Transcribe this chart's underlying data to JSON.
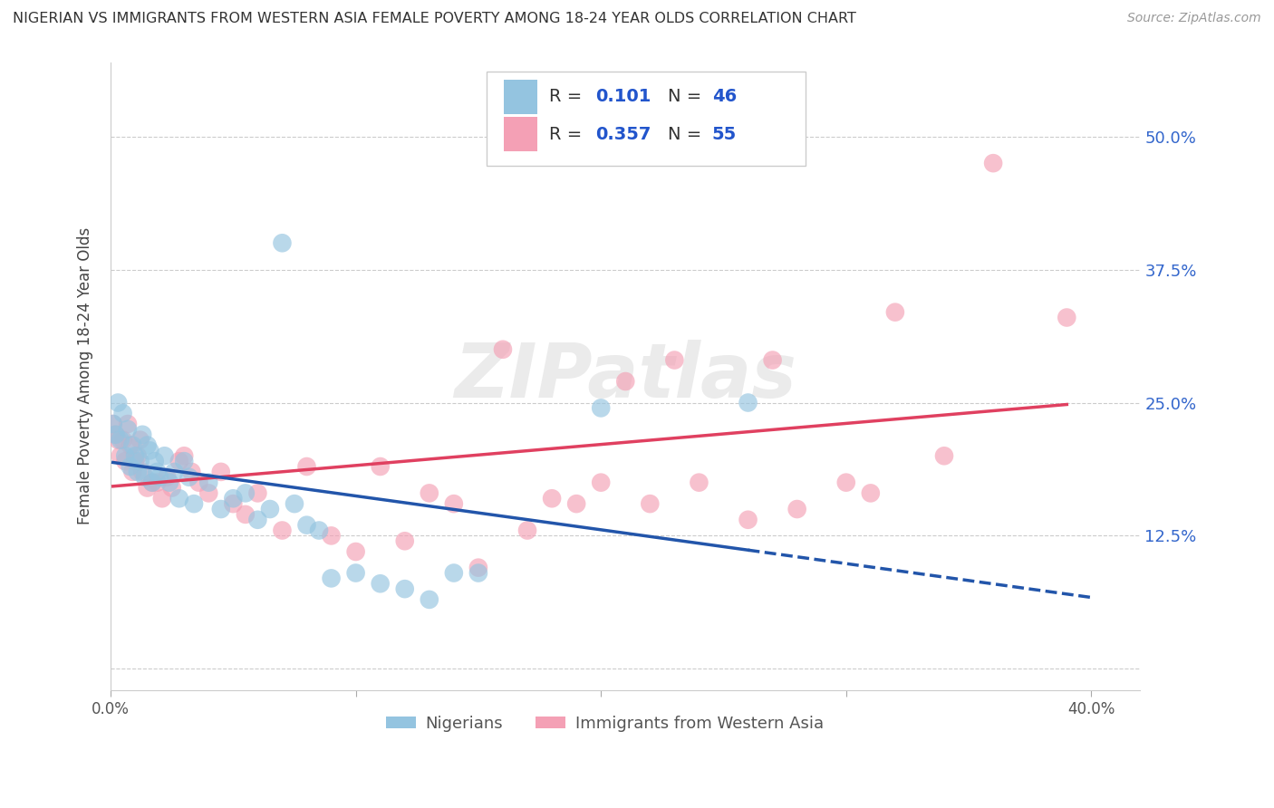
{
  "title": "NIGERIAN VS IMMIGRANTS FROM WESTERN ASIA FEMALE POVERTY AMONG 18-24 YEAR OLDS CORRELATION CHART",
  "source": "Source: ZipAtlas.com",
  "ylabel": "Female Poverty Among 18-24 Year Olds",
  "xlim": [
    0.0,
    0.42
  ],
  "ylim": [
    -0.02,
    0.57
  ],
  "ytick_positions": [
    0.0,
    0.125,
    0.25,
    0.375,
    0.5
  ],
  "yticklabels_right": [
    "",
    "12.5%",
    "25.0%",
    "37.5%",
    "50.0%"
  ],
  "blue_color": "#94c4e0",
  "pink_color": "#f4a0b5",
  "blue_line_color": "#2255aa",
  "pink_line_color": "#e04060",
  "watermark": "ZIPatlas",
  "nigerian_x": [
    0.001,
    0.002,
    0.003,
    0.004,
    0.005,
    0.006,
    0.007,
    0.008,
    0.009,
    0.01,
    0.011,
    0.012,
    0.013,
    0.014,
    0.015,
    0.016,
    0.017,
    0.018,
    0.019,
    0.02,
    0.022,
    0.024,
    0.026,
    0.028,
    0.03,
    0.032,
    0.034,
    0.04,
    0.045,
    0.05,
    0.055,
    0.06,
    0.065,
    0.07,
    0.075,
    0.08,
    0.085,
    0.09,
    0.1,
    0.11,
    0.12,
    0.13,
    0.14,
    0.15,
    0.2,
    0.26
  ],
  "nigerian_y": [
    0.23,
    0.22,
    0.25,
    0.215,
    0.24,
    0.2,
    0.225,
    0.19,
    0.21,
    0.2,
    0.185,
    0.195,
    0.22,
    0.18,
    0.21,
    0.205,
    0.175,
    0.195,
    0.185,
    0.18,
    0.2,
    0.175,
    0.185,
    0.16,
    0.195,
    0.18,
    0.155,
    0.175,
    0.15,
    0.16,
    0.165,
    0.14,
    0.15,
    0.4,
    0.155,
    0.135,
    0.13,
    0.085,
    0.09,
    0.08,
    0.075,
    0.065,
    0.09,
    0.09,
    0.245,
    0.25
  ],
  "immigrant_x": [
    0.001,
    0.002,
    0.003,
    0.004,
    0.005,
    0.006,
    0.007,
    0.008,
    0.009,
    0.01,
    0.011,
    0.012,
    0.013,
    0.015,
    0.017,
    0.019,
    0.021,
    0.023,
    0.025,
    0.028,
    0.03,
    0.033,
    0.036,
    0.04,
    0.045,
    0.05,
    0.055,
    0.06,
    0.07,
    0.08,
    0.09,
    0.1,
    0.11,
    0.12,
    0.13,
    0.14,
    0.15,
    0.16,
    0.17,
    0.18,
    0.19,
    0.2,
    0.21,
    0.22,
    0.23,
    0.24,
    0.26,
    0.27,
    0.28,
    0.3,
    0.31,
    0.32,
    0.34,
    0.36,
    0.39
  ],
  "immigrant_y": [
    0.23,
    0.22,
    0.215,
    0.2,
    0.215,
    0.195,
    0.23,
    0.21,
    0.185,
    0.195,
    0.2,
    0.215,
    0.185,
    0.17,
    0.175,
    0.175,
    0.16,
    0.18,
    0.17,
    0.195,
    0.2,
    0.185,
    0.175,
    0.165,
    0.185,
    0.155,
    0.145,
    0.165,
    0.13,
    0.19,
    0.125,
    0.11,
    0.19,
    0.12,
    0.165,
    0.155,
    0.095,
    0.3,
    0.13,
    0.16,
    0.155,
    0.175,
    0.27,
    0.155,
    0.29,
    0.175,
    0.14,
    0.29,
    0.15,
    0.175,
    0.165,
    0.335,
    0.2,
    0.475,
    0.33
  ]
}
